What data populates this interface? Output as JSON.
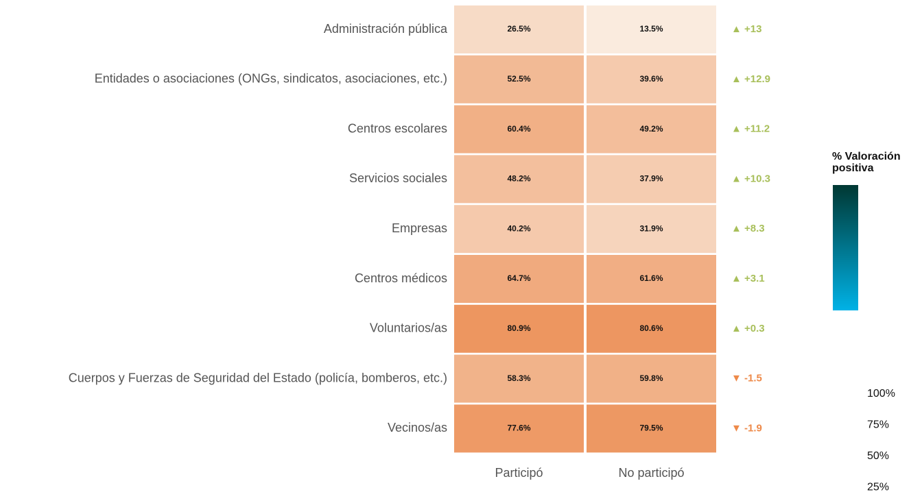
{
  "chart_data": {
    "type": "heatmap",
    "categories": [
      "Administración pública",
      "Entidades o asociaciones (ONGs, sindicatos, asociaciones, etc.)",
      "Centros escolares",
      "Servicios sociales",
      "Empresas",
      "Centros médicos",
      "Voluntarios/as",
      "Cuerpos y Fuerzas de Seguridad del Estado (policía, bomberos, etc.)",
      "Vecinos/as"
    ],
    "columns": [
      "Participó",
      "No participó"
    ],
    "values": [
      [
        26.5,
        13.5
      ],
      [
        52.5,
        39.6
      ],
      [
        60.4,
        49.2
      ],
      [
        48.2,
        37.9
      ],
      [
        40.2,
        31.9
      ],
      [
        64.7,
        61.6
      ],
      [
        80.9,
        80.6
      ],
      [
        58.3,
        59.8
      ],
      [
        77.6,
        79.5
      ]
    ],
    "value_labels": [
      [
        "26.5%",
        "13.5%"
      ],
      [
        "52.5%",
        "39.6%"
      ],
      [
        "60.4%",
        "49.2%"
      ],
      [
        "48.2%",
        "37.9%"
      ],
      [
        "40.2%",
        "31.9%"
      ],
      [
        "64.7%",
        "61.6%"
      ],
      [
        "80.9%",
        "80.6%"
      ],
      [
        "58.3%",
        "59.8%"
      ],
      [
        "77.6%",
        "79.5%"
      ]
    ],
    "differences": [
      13,
      12.9,
      11.2,
      10.3,
      8.3,
      3.1,
      0.3,
      -1.5,
      -1.9
    ],
    "difference_labels": [
      "▲ +13",
      "▲ +12.9",
      "▲ +11.2",
      "▲ +10.3",
      "▲ +8.3",
      "▲ +3.1",
      "▲ +0.3",
      "▼ -1.5",
      "▼ -1.9"
    ],
    "positive_color": "#a8bf5a",
    "negative_color": "#ee8a4a",
    "cell_colors": [
      "#faebde",
      "#ed9660"
    ],
    "legend": {
      "title": "% Valoración positiva",
      "colors": [
        "#00b2e6",
        "#003833"
      ],
      "ticks": [
        {
          "value": 100,
          "label": "100%"
        },
        {
          "value": 75,
          "label": "75%"
        },
        {
          "value": 50,
          "label": "50%"
        },
        {
          "value": 25,
          "label": "25%"
        }
      ]
    }
  }
}
